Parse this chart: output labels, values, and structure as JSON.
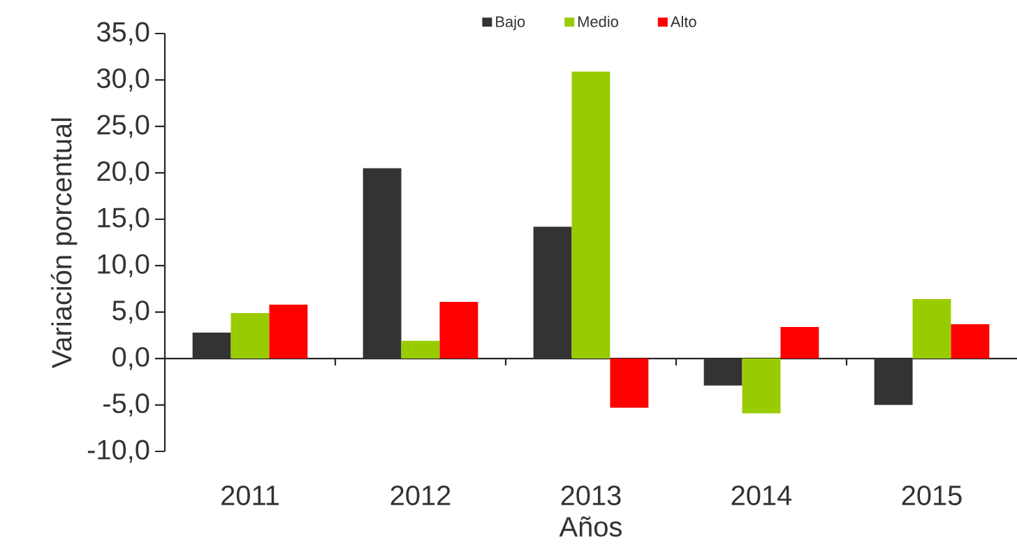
{
  "chart_data": {
    "type": "bar",
    "xlabel": "Años",
    "ylabel": "Variación porcentual",
    "categories": [
      "2011",
      "2012",
      "2013",
      "2014",
      "2015"
    ],
    "series": [
      {
        "name": "Bajo",
        "color": "#333333",
        "values": [
          2.8,
          20.5,
          14.2,
          -2.9,
          -5.0
        ]
      },
      {
        "name": "Medio",
        "color": "#99cc00",
        "values": [
          4.9,
          1.9,
          30.9,
          -5.9,
          6.4
        ]
      },
      {
        "name": "Alto",
        "color": "#ff0000",
        "values": [
          5.8,
          6.1,
          -5.3,
          3.4,
          3.7
        ]
      }
    ],
    "ylim": [
      -10,
      35
    ],
    "yticks": [
      {
        "value": -10,
        "label": "-10,0"
      },
      {
        "value": -5,
        "label": "-5,0"
      },
      {
        "value": 0,
        "label": "0,0"
      },
      {
        "value": 5,
        "label": "5,0"
      },
      {
        "value": 10,
        "label": "10,0"
      },
      {
        "value": 15,
        "label": "15,0"
      },
      {
        "value": 20,
        "label": "20,0"
      },
      {
        "value": 25,
        "label": "25,0"
      },
      {
        "value": 30,
        "label": "30,0"
      },
      {
        "value": 35,
        "label": "35,0"
      }
    ],
    "legend": "top"
  }
}
